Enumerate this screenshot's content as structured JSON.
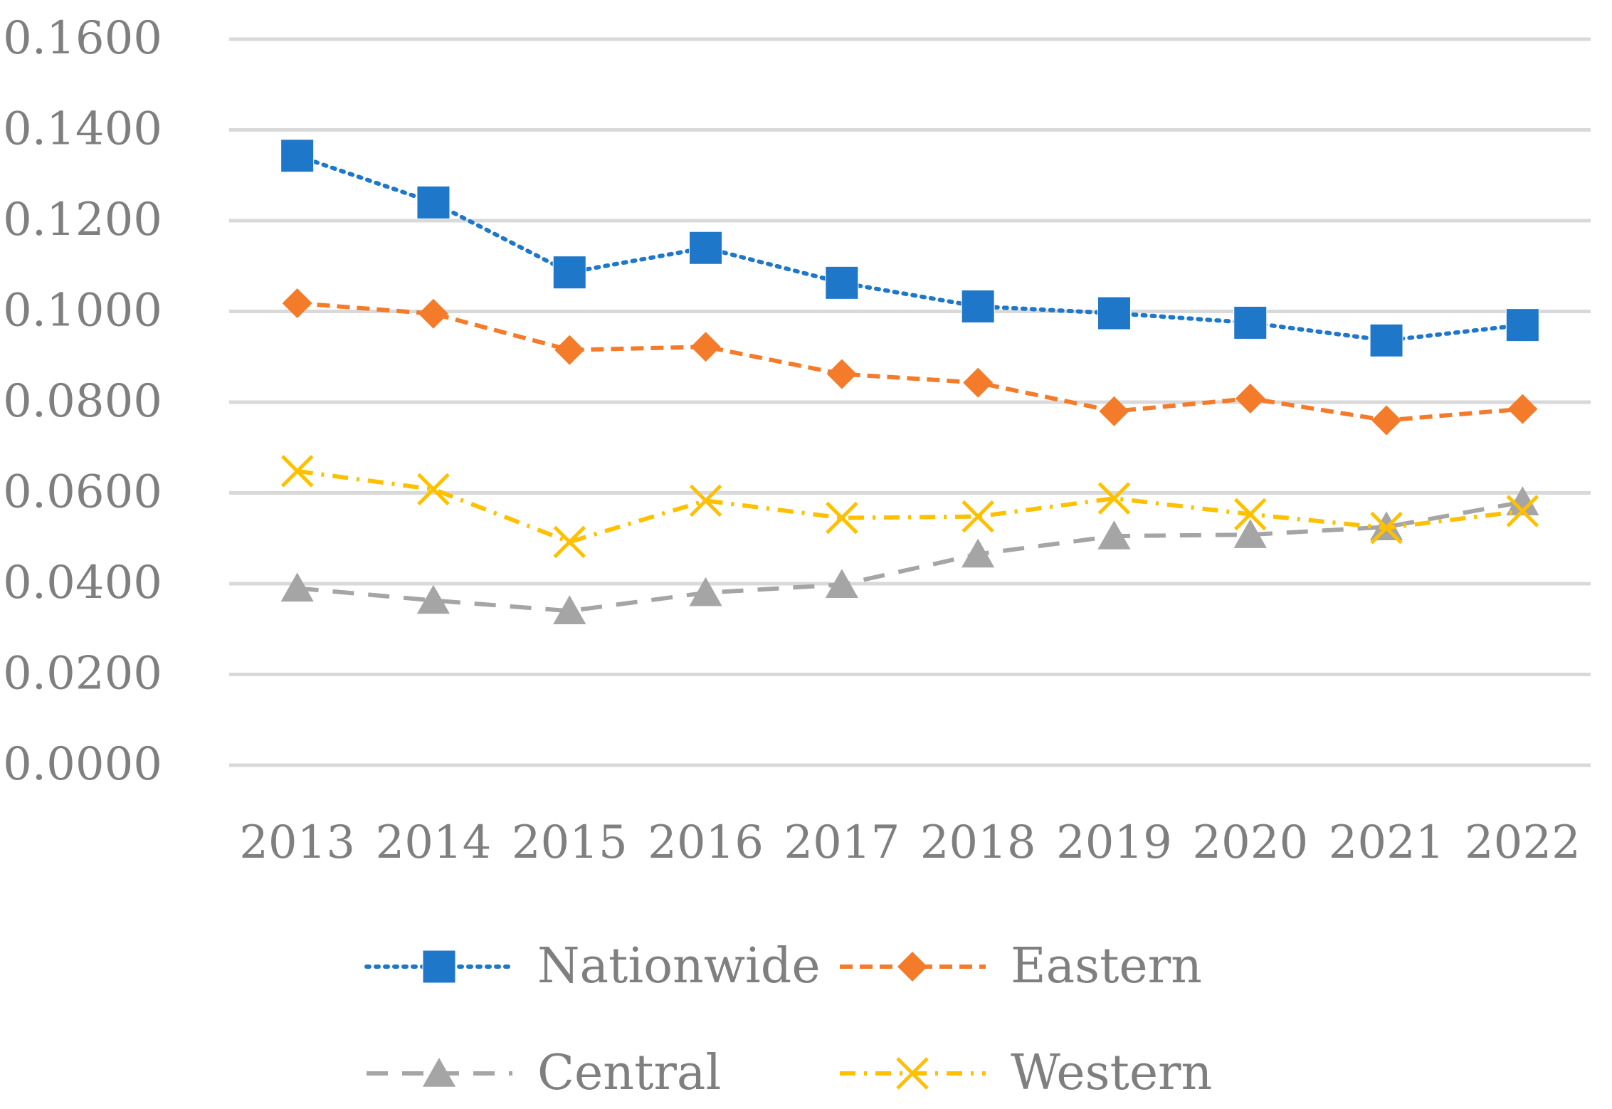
{
  "chart_data": {
    "type": "line",
    "title": "",
    "xlabel": "",
    "ylabel": "",
    "categories": [
      "2013",
      "2014",
      "2015",
      "2016",
      "2017",
      "2018",
      "2019",
      "2020",
      "2021",
      "2022"
    ],
    "ylim": [
      0,
      0.16
    ],
    "yticks": [
      "0.0000",
      "0.0200",
      "0.0400",
      "0.0600",
      "0.0800",
      "0.1000",
      "0.1200",
      "0.1400",
      "0.1600"
    ],
    "grid": true,
    "legend_position": "bottom",
    "series": [
      {
        "name": "Nationwide",
        "color": "#1f77c9",
        "marker": "square",
        "line": "dotted",
        "values": [
          0.1343,
          0.124,
          0.1086,
          0.114,
          0.1063,
          0.1011,
          0.0996,
          0.0975,
          0.0936,
          0.097
        ]
      },
      {
        "name": "Eastern",
        "color": "#f47b2a",
        "marker": "diamond",
        "line": "dashed",
        "values": [
          0.1018,
          0.0995,
          0.0915,
          0.0922,
          0.0862,
          0.0843,
          0.078,
          0.0808,
          0.076,
          0.0785
        ]
      },
      {
        "name": "Central",
        "color": "#a5a5a5",
        "marker": "triangle",
        "line": "longdash",
        "values": [
          0.039,
          0.0363,
          0.034,
          0.038,
          0.0398,
          0.0465,
          0.0505,
          0.0508,
          0.0525,
          0.058
        ]
      },
      {
        "name": "Western",
        "color": "#ffc000",
        "marker": "x",
        "line": "dashdot",
        "values": [
          0.0648,
          0.0608,
          0.0492,
          0.0583,
          0.0545,
          0.0548,
          0.0588,
          0.0553,
          0.0523,
          0.056
        ]
      }
    ]
  }
}
